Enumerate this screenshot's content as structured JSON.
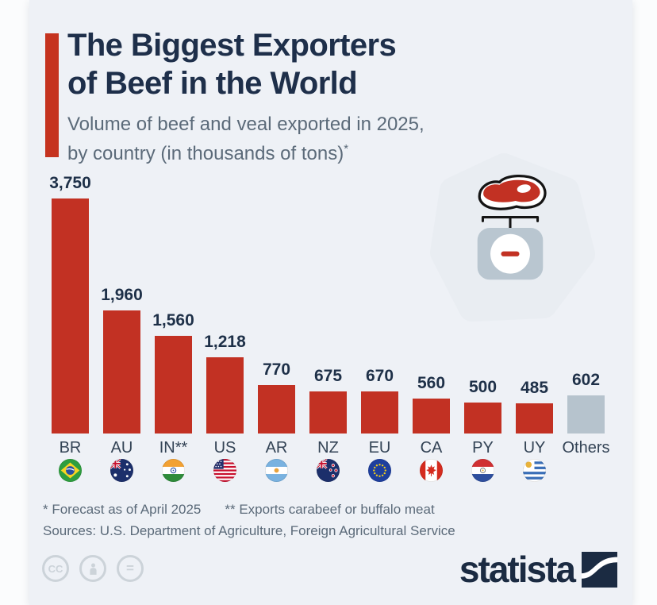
{
  "header": {
    "title_line1": "The Biggest Exporters",
    "title_line2": "of Beef in the World",
    "subtitle_line1": "Volume of beef and veal exported in 2025,",
    "subtitle_line2": "by country (in thousands of tons)",
    "subtitle_footnote_marker": "*"
  },
  "chart_data": {
    "type": "bar",
    "title": "The Biggest Exporters of Beef in the World",
    "unit": "thousands of tons",
    "categories": [
      "BR",
      "AU",
      "IN**",
      "US",
      "AR",
      "NZ",
      "EU",
      "CA",
      "PY",
      "UY",
      "Others"
    ],
    "values": [
      3750,
      1960,
      1560,
      1218,
      770,
      675,
      670,
      560,
      500,
      485,
      602
    ],
    "value_labels": [
      "3,750",
      "1,960",
      "1,560",
      "1,218",
      "770",
      "675",
      "670",
      "560",
      "500",
      "485",
      "602"
    ],
    "flags": [
      "br",
      "au",
      "in",
      "us",
      "ar",
      "nz",
      "eu",
      "ca",
      "py",
      "uy",
      ""
    ],
    "bar_color": "#c23123",
    "others_bar_color": "#b6c3cd",
    "ylim": [
      0,
      3750
    ],
    "grid": false,
    "legend": false
  },
  "footnotes": {
    "note1": "* Forecast as of April 2025",
    "note2": "** Exports carabeef or buffalo meat",
    "sources": "Sources: U.S. Department of Agriculture, Foreign Agricultural Service"
  },
  "license": {
    "badge1": "CC",
    "badge3": "="
  },
  "branding": {
    "logo_text": "statista"
  },
  "colors": {
    "bar_red": "#c23123",
    "others_gray": "#b6c3cd",
    "title_navy": "#1e2f4a",
    "subtitle_gray": "#5b6a79",
    "card_bg": "#eef1f6",
    "page_bg": "#fbfcfd"
  }
}
